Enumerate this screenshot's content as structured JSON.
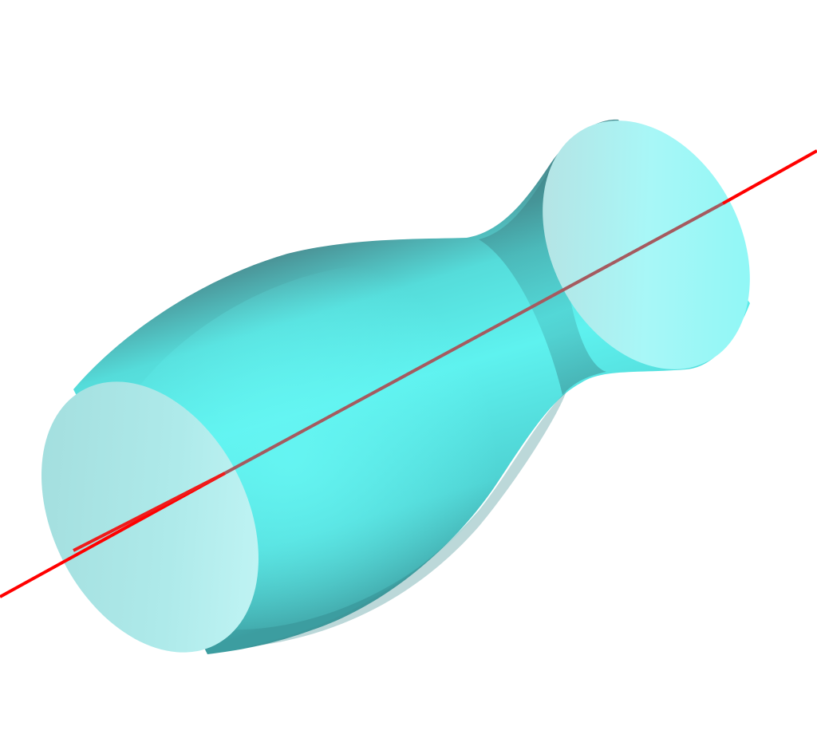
{
  "figure": {
    "description_visible_text": "",
    "colors": {
      "background": "#ffffff",
      "surface": "#5ef0ee",
      "surface_light": "#a9f8f7",
      "surface_dark": "#3fa6a8",
      "end_cap": "#b7f2f2",
      "end_cap_shadow": "#8fd0d2",
      "axis": "#ff0000",
      "axis_inside": "#a85a5e"
    },
    "objects": [
      "surface-of-revolution",
      "rotation-axis"
    ]
  }
}
